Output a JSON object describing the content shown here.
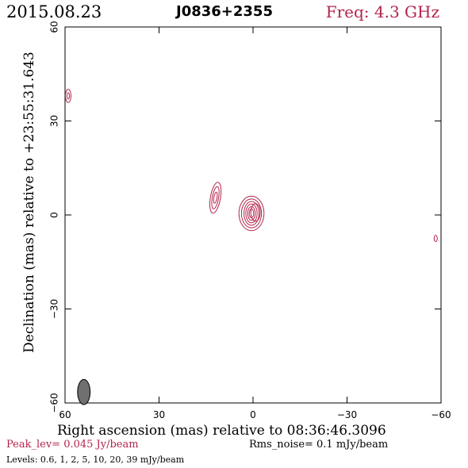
{
  "header": {
    "date": "2015.08.23",
    "source": "J0836+2355",
    "freq": "Freq: 4.3 GHz"
  },
  "colors": {
    "contour": "#b3244a",
    "beam_fill": "#707070",
    "axis": "#000000"
  },
  "chart_data": {
    "type": "contour",
    "xlabel": "Right ascension (mas) relative to 08:36:46.3096",
    "ylabel": "Declination (mas) relative to +23:55:31.643",
    "xlim": [
      60,
      -60
    ],
    "ylim": [
      -60,
      60
    ],
    "xticks": [
      60,
      30,
      0,
      -30,
      -60
    ],
    "yticks": [
      -60,
      -30,
      0,
      30,
      60
    ],
    "xtick_labels": [
      "60",
      "30",
      "0",
      "−30",
      "−60"
    ],
    "ytick_labels": [
      "−60",
      "−30",
      "0",
      "30",
      "60"
    ],
    "peak_label": "Peak_lev=  0.045 Jy/beam",
    "rms_label": "Rms_noise=   0.1 mJy/beam",
    "levels_label": "Levels: 0.6,    1,    2,    5,   10,   20,   39  mJy/beam",
    "contour_levels": [
      0.6,
      1,
      2,
      5,
      10,
      20,
      39
    ],
    "components": [
      {
        "x": 0.5,
        "y": 0.5,
        "rings": [
          {
            "rx": 4.0,
            "ry": 5.5,
            "angle": 0
          },
          {
            "rx": 3.2,
            "ry": 4.6,
            "angle": 0
          },
          {
            "rx": 2.4,
            "ry": 3.8,
            "angle": 0
          },
          {
            "rx": 1.8,
            "ry": 3.0,
            "angle": 0
          },
          {
            "rx": 1.2,
            "ry": 2.2,
            "angle": 0
          },
          {
            "rx": 0.7,
            "ry": 1.4,
            "angle": 0
          }
        ]
      },
      {
        "x": -0.8,
        "y": 0.8,
        "rings": [
          {
            "rx": 1.5,
            "ry": 2.8,
            "angle": 0
          }
        ]
      },
      {
        "x": 12.0,
        "y": 5.5,
        "rings": [
          {
            "rx": 1.6,
            "ry": 5.0,
            "angle": 10
          },
          {
            "rx": 1.0,
            "ry": 3.6,
            "angle": 10
          },
          {
            "rx": 0.5,
            "ry": 1.8,
            "angle": 10
          }
        ]
      },
      {
        "x": 59.0,
        "y": 38.0,
        "rings": [
          {
            "rx": 0.9,
            "ry": 2.1,
            "angle": 0
          },
          {
            "rx": 0.4,
            "ry": 1.0,
            "angle": 0
          }
        ]
      },
      {
        "x": -58.3,
        "y": -7.5,
        "rings": [
          {
            "rx": 0.5,
            "ry": 1.0,
            "angle": 0
          }
        ]
      }
    ],
    "beam": {
      "x": 54.0,
      "y": -56.5,
      "major": 4.0,
      "minor": 2.0,
      "angle": 0
    }
  }
}
